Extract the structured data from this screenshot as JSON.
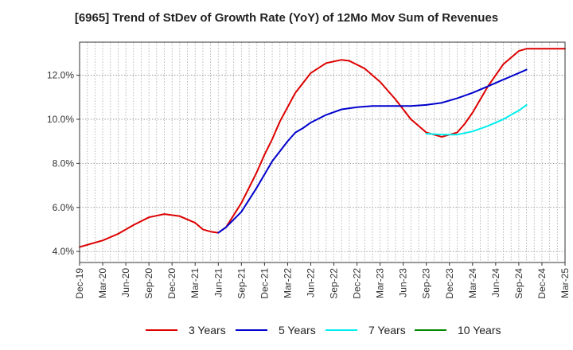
{
  "chart_data": {
    "type": "line",
    "title": "[6965]  Trend of StDev of Growth Rate (YoY) of 12Mo Mov Sum of Revenues",
    "xlabel": "",
    "ylabel": "",
    "x_tick_labels": [
      "Dec-19",
      "Mar-20",
      "Jun-20",
      "Sep-20",
      "Dec-20",
      "Mar-21",
      "Jun-21",
      "Sep-21",
      "Dec-21",
      "Mar-22",
      "Jun-22",
      "Sep-22",
      "Dec-22",
      "Mar-23",
      "Jun-23",
      "Sep-23",
      "Dec-23",
      "Mar-24",
      "Jun-24",
      "Sep-24",
      "Dec-24",
      "Mar-25"
    ],
    "y_ticks": [
      4.0,
      6.0,
      8.0,
      10.0,
      12.0
    ],
    "y_tick_labels": [
      "4.0%",
      "6.0%",
      "8.0%",
      "10.0%",
      "12.0%"
    ],
    "ylim": [
      3.5,
      13.5
    ],
    "x_range_months": [
      0,
      63
    ],
    "grid": true,
    "legend_position": "bottom",
    "series": [
      {
        "name": "3 Years",
        "color": "#dd0000",
        "x": [
          0,
          3,
          5,
          7,
          9,
          11,
          13,
          15,
          16,
          17,
          18,
          19,
          21,
          23,
          24,
          25,
          26,
          28,
          30,
          32,
          34,
          35,
          37,
          39,
          41,
          43,
          45,
          47,
          49,
          50,
          51,
          52,
          53,
          55,
          57,
          58,
          59,
          60,
          61,
          62,
          63
        ],
        "y": [
          4.2,
          4.5,
          4.8,
          5.2,
          5.55,
          5.7,
          5.6,
          5.3,
          5.0,
          4.9,
          4.85,
          5.1,
          6.2,
          7.6,
          8.4,
          9.1,
          9.9,
          11.2,
          12.1,
          12.55,
          12.7,
          12.65,
          12.3,
          11.7,
          10.9,
          10.0,
          9.4,
          9.2,
          9.4,
          9.8,
          10.3,
          10.9,
          11.5,
          12.5,
          13.1,
          13.2,
          13.2,
          13.2,
          13.2,
          13.2,
          13.2
        ]
      },
      {
        "name": "5 Years",
        "color": "#0000cc",
        "x": [
          18,
          19,
          21,
          23,
          25,
          27,
          28,
          29,
          30,
          32,
          34,
          36,
          38,
          40,
          43,
          45,
          47,
          49,
          51,
          53,
          55,
          57,
          58
        ],
        "y": [
          4.85,
          5.1,
          5.8,
          6.9,
          8.1,
          9.0,
          9.4,
          9.6,
          9.85,
          10.2,
          10.45,
          10.55,
          10.6,
          10.6,
          10.6,
          10.65,
          10.75,
          10.95,
          11.2,
          11.5,
          11.8,
          12.1,
          12.25
        ]
      },
      {
        "name": "7 Years",
        "color": "#00eeee",
        "x": [
          45,
          47,
          49,
          51,
          53,
          55,
          57,
          58
        ],
        "y": [
          9.35,
          9.3,
          9.3,
          9.45,
          9.7,
          10.0,
          10.4,
          10.65
        ]
      },
      {
        "name": "10 Years",
        "color": "#008800",
        "x": [],
        "y": []
      }
    ]
  }
}
